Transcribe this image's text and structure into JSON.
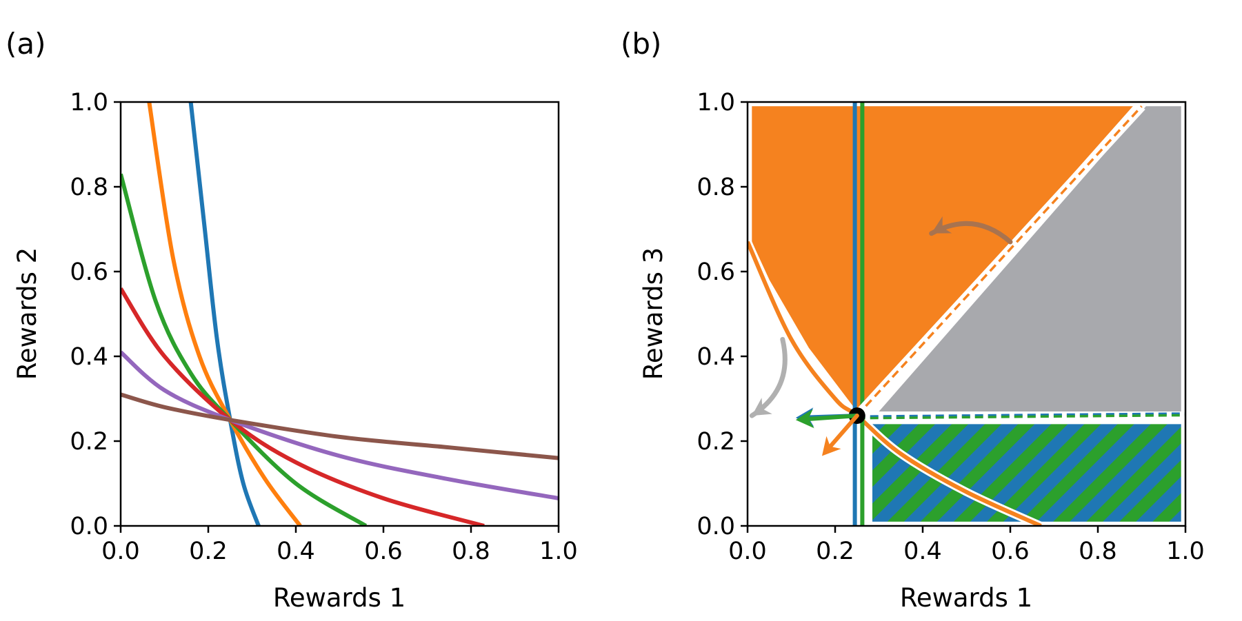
{
  "chart_data": [
    {
      "type": "line",
      "panel_label": "(a)",
      "xlabel": "Rewards 1",
      "ylabel": "Rewards 2",
      "xlim": [
        0,
        1
      ],
      "ylim": [
        0,
        1
      ],
      "xticks": [
        "0.0",
        "0.2",
        "0.4",
        "0.6",
        "0.8",
        "1.0"
      ],
      "yticks": [
        "0.0",
        "0.2",
        "0.4",
        "0.6",
        "0.8",
        "1.0"
      ],
      "grid": false,
      "series": [
        {
          "name": "blue",
          "color": "#1f77b4",
          "x": [
            0.16,
            0.19,
            0.22,
            0.25,
            0.28,
            0.315
          ],
          "y": [
            1.0,
            0.72,
            0.44,
            0.25,
            0.1,
            0.0
          ]
        },
        {
          "name": "orange",
          "color": "#ff7f0e",
          "x": [
            0.065,
            0.12,
            0.18,
            0.25,
            0.33,
            0.41
          ],
          "y": [
            1.0,
            0.63,
            0.4,
            0.25,
            0.11,
            0.0
          ]
        },
        {
          "name": "green",
          "color": "#2ca02c",
          "x": [
            0.0,
            0.08,
            0.16,
            0.25,
            0.4,
            0.56
          ],
          "y": [
            0.83,
            0.53,
            0.36,
            0.25,
            0.1,
            0.0
          ]
        },
        {
          "name": "red",
          "color": "#d62728",
          "x": [
            0.0,
            0.1,
            0.25,
            0.4,
            0.6,
            0.83
          ],
          "y": [
            0.56,
            0.4,
            0.25,
            0.15,
            0.065,
            0.0
          ]
        },
        {
          "name": "purple",
          "color": "#9467bd",
          "x": [
            0.0,
            0.1,
            0.25,
            0.5,
            0.75,
            1.0
          ],
          "y": [
            0.41,
            0.32,
            0.25,
            0.165,
            0.11,
            0.065
          ]
        },
        {
          "name": "brown",
          "color": "#8c564b",
          "x": [
            0.0,
            0.1,
            0.25,
            0.5,
            0.75,
            1.0
          ],
          "y": [
            0.31,
            0.28,
            0.25,
            0.21,
            0.185,
            0.16
          ]
        }
      ]
    },
    {
      "type": "area",
      "panel_label": "(b)",
      "xlabel": "Rewards 1",
      "ylabel": "Rewards 3",
      "xlim": [
        0,
        1
      ],
      "ylim": [
        0,
        1
      ],
      "xticks": [
        "0.0",
        "0.2",
        "0.4",
        "0.6",
        "0.8",
        "1.0"
      ],
      "yticks": [
        "0.0",
        "0.2",
        "0.4",
        "0.6",
        "0.8",
        "1.0"
      ],
      "grid": false,
      "point": {
        "x": 0.25,
        "y": 0.26
      },
      "regions": [
        {
          "name": "orange-region",
          "color": "#f5821f",
          "polygon": [
            [
              0.01,
              0.99
            ],
            [
              0.88,
              0.99
            ],
            [
              0.27,
              0.28
            ],
            [
              0.25,
              0.27
            ],
            [
              0.14,
              0.42
            ],
            [
              0.05,
              0.58
            ],
            [
              0.01,
              0.67
            ]
          ]
        },
        {
          "name": "gray-region",
          "color": "#a8a9ad",
          "polygon": [
            [
              0.91,
              0.99
            ],
            [
              0.99,
              0.99
            ],
            [
              0.99,
              0.27
            ],
            [
              0.3,
              0.27
            ]
          ]
        },
        {
          "name": "hatched-region",
          "colors": [
            "#1f77b4",
            "#2ca02c"
          ],
          "polygon": [
            [
              0.285,
              0.01
            ],
            [
              0.99,
              0.01
            ],
            [
              0.99,
              0.24
            ],
            [
              0.285,
              0.24
            ]
          ]
        }
      ],
      "series": [
        {
          "name": "orange-curve",
          "color": "#f5821f",
          "x": [
            0.0,
            0.1,
            0.2,
            0.25,
            0.35,
            0.5,
            0.67
          ],
          "y": [
            0.67,
            0.44,
            0.3,
            0.26,
            0.17,
            0.08,
            0.0
          ]
        },
        {
          "name": "blue-vertical",
          "color": "#1f77b4",
          "x": [
            0.245,
            0.245
          ],
          "y": [
            0.0,
            1.0
          ]
        },
        {
          "name": "green-vertical",
          "color": "#2ca02c",
          "x": [
            0.262,
            0.262
          ],
          "y": [
            0.0,
            1.0
          ]
        },
        {
          "name": "orange-dashed",
          "color": "#f5821f",
          "x": [
            0.25,
            0.9
          ],
          "y": [
            0.26,
            0.99
          ]
        },
        {
          "name": "blue-dashed",
          "color": "#1f77b4",
          "x": [
            0.25,
            1.0
          ],
          "y": [
            0.258,
            0.265
          ]
        },
        {
          "name": "green-dashed",
          "color": "#2ca02c",
          "x": [
            0.25,
            1.0
          ],
          "y": [
            0.254,
            0.261
          ]
        }
      ],
      "annotations": [
        {
          "name": "brown-curved-arrow",
          "color": "#a8734f",
          "from": [
            0.6,
            0.67
          ],
          "to": [
            0.42,
            0.69
          ]
        },
        {
          "name": "gray-curved-arrow",
          "color": "#b0b0b0",
          "from": [
            0.08,
            0.44
          ],
          "to": [
            0.01,
            0.26
          ]
        },
        {
          "name": "blue-arrow",
          "color": "#1f77b4",
          "from": [
            0.25,
            0.26
          ],
          "to": [
            0.11,
            0.255
          ]
        },
        {
          "name": "green-arrow",
          "color": "#2ca02c",
          "from": [
            0.25,
            0.26
          ],
          "to": [
            0.11,
            0.25
          ]
        },
        {
          "name": "orange-arrow",
          "color": "#f5821f",
          "from": [
            0.25,
            0.26
          ],
          "to": [
            0.17,
            0.165
          ]
        }
      ]
    }
  ]
}
